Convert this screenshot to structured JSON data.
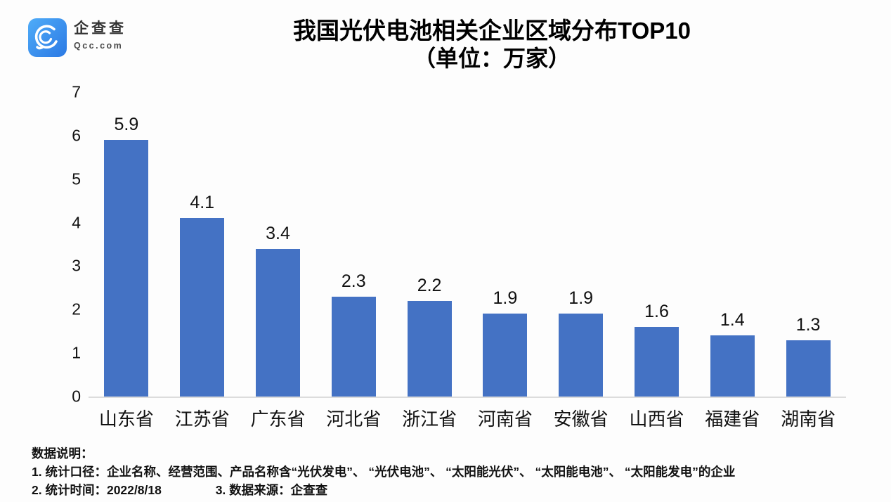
{
  "logo": {
    "name": "企查查",
    "domain": "Qcc.com"
  },
  "chart_data": {
    "type": "bar",
    "title": "我国光伏电池相关企业区域分布TOP10",
    "subtitle": "（单位：万家）",
    "unit": "万家",
    "categories": [
      "山东省",
      "江苏省",
      "广东省",
      "河北省",
      "浙江省",
      "河南省",
      "安徽省",
      "山西省",
      "福建省",
      "湖南省"
    ],
    "values": [
      5.9,
      4.1,
      3.4,
      2.3,
      2.2,
      1.9,
      1.9,
      1.6,
      1.4,
      1.3
    ],
    "xlabel": "",
    "ylabel": "",
    "ylim": [
      0,
      7
    ],
    "yticks": [
      0,
      1,
      2,
      3,
      4,
      5,
      6,
      7
    ],
    "grid": false,
    "legend": "none",
    "value_labels": true,
    "bar_color": "#4472C4",
    "baseline_color": "#dcdcdc"
  },
  "footer": {
    "note_title": "数据说明：",
    "line1": "1. 统计口径：企业名称、经营范围、产品名称含“光伏发电”、 “光伏电池”、 “太阳能光伏”、 “太阳能电池”、 “太阳能发电”的企业",
    "line2a": "2. 统计时间：2022/8/18",
    "line2b": "3. 数据来源：企查查"
  }
}
